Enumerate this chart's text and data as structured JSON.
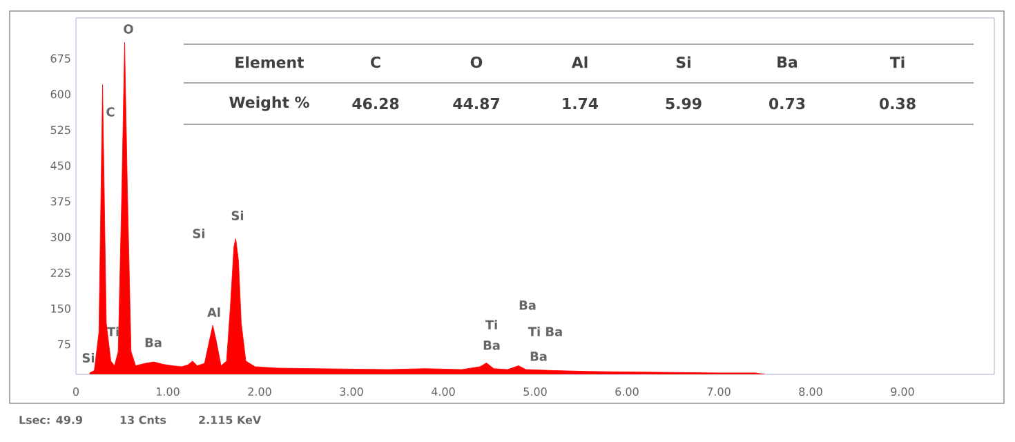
{
  "chart_data": {
    "type": "area",
    "xlim": [
      0,
      10
    ],
    "ylim": [
      12,
      760
    ],
    "xticks": [
      {
        "value": 0,
        "label": "0"
      },
      {
        "value": 1,
        "label": "1.00"
      },
      {
        "value": 2,
        "label": "2.00"
      },
      {
        "value": 3,
        "label": "3.00"
      },
      {
        "value": 4,
        "label": "4.00"
      },
      {
        "value": 5,
        "label": "5.00"
      },
      {
        "value": 6,
        "label": "6.00"
      },
      {
        "value": 7,
        "label": "7.00"
      },
      {
        "value": 8,
        "label": "8.00"
      },
      {
        "value": 9,
        "label": "9.00"
      }
    ],
    "yticks": [
      75,
      150,
      225,
      300,
      375,
      450,
      525,
      600,
      675
    ],
    "grid": false,
    "marker": "none",
    "series": [
      {
        "color": "#ff0000",
        "x": [
          0.15,
          0.2,
          0.25,
          0.29,
          0.33,
          0.38,
          0.42,
          0.46,
          0.5,
          0.53,
          0.56,
          0.6,
          0.65,
          0.75,
          0.85,
          0.95,
          1.05,
          1.15,
          1.22,
          1.27,
          1.32,
          1.4,
          1.45,
          1.49,
          1.53,
          1.58,
          1.64,
          1.68,
          1.72,
          1.74,
          1.77,
          1.8,
          1.85,
          1.95,
          2.2,
          2.6,
          3.0,
          3.4,
          3.8,
          4.2,
          4.4,
          4.47,
          4.55,
          4.7,
          4.82,
          4.9,
          5.2,
          5.6,
          6.0,
          6.5,
          7.0,
          7.4,
          7.5
        ],
        "values": [
          15,
          20,
          100,
          620,
          120,
          40,
          30,
          60,
          400,
          709,
          400,
          60,
          30,
          35,
          38,
          33,
          30,
          28,
          32,
          40,
          30,
          35,
          80,
          115,
          80,
          30,
          40,
          150,
          280,
          297,
          250,
          120,
          40,
          28,
          25,
          24,
          23,
          22,
          24,
          22,
          28,
          36,
          24,
          22,
          30,
          22,
          20,
          18,
          17,
          16,
          15,
          15,
          12
        ]
      }
    ],
    "annotations": [
      "Element",
      "C",
      "O",
      "Al",
      "Si",
      "Ba",
      "Ti",
      "Weight %",
      "46.28",
      "44.87",
      "1.74",
      "5.99",
      "0.73",
      "0.38",
      "Lsec: 49.9",
      "13 Cnts",
      "2.115 KeV",
      "Si",
      "C",
      "O",
      "Ti",
      "Ba",
      "Si",
      "Al",
      "Si",
      "Ba",
      "Ti",
      "Ti Ba",
      "Ba",
      "Ba"
    ]
  }
}
